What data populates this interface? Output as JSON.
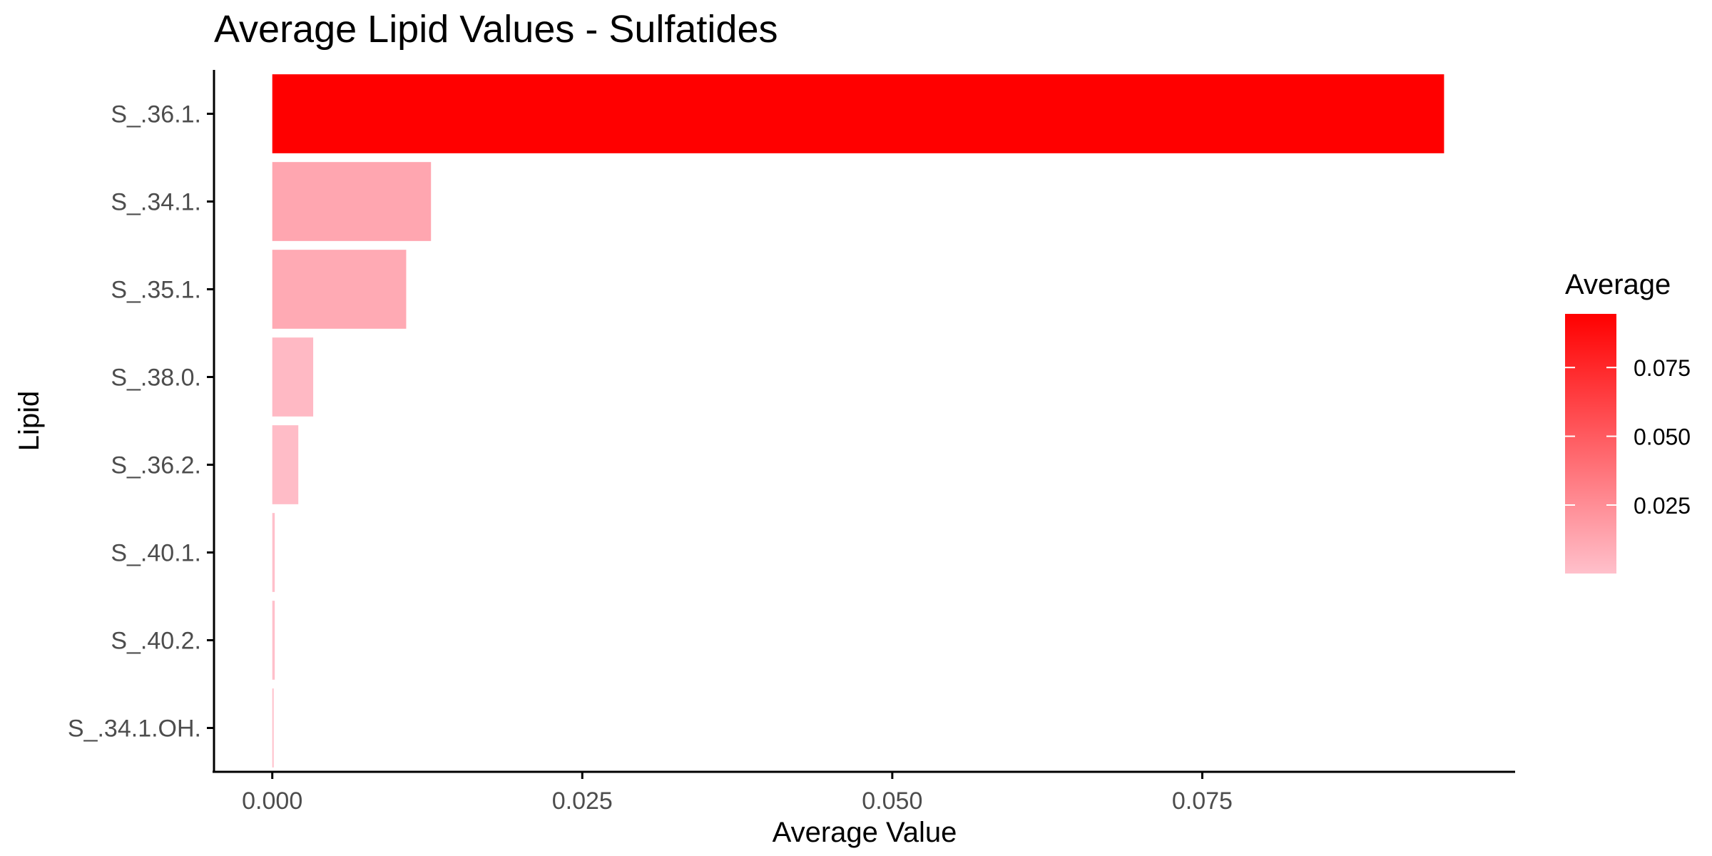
{
  "chart_data": {
    "type": "bar",
    "orientation": "horizontal",
    "title": "Average Lipid Values - Sulfatides",
    "xlabel": "Average Value",
    "ylabel": "Lipid",
    "categories": [
      "S_.36.1.",
      "S_.34.1.",
      "S_.35.1.",
      "S_.38.0.",
      "S_.36.2.",
      "S_.40.1.",
      "S_.40.2.",
      "S_.34.1.OH."
    ],
    "values": [
      0.0945,
      0.0128,
      0.0108,
      0.0033,
      0.0021,
      0.0002,
      0.0002,
      0.0001
    ],
    "xlim": [
      -0.0047,
      0.1
    ],
    "xticks": [
      0,
      0.025,
      0.05,
      0.075
    ],
    "xtick_labels": [
      "0.000",
      "0.025",
      "0.050",
      "0.075"
    ],
    "grid": false,
    "legend": {
      "title": "Average",
      "type": "colorbar",
      "position": "right",
      "range": [
        0.0001,
        0.0945
      ],
      "ticks": [
        0.025,
        0.05,
        0.075
      ],
      "tick_labels": [
        "0.025",
        "0.050",
        "0.075"
      ],
      "low_color": "#FFC0CB",
      "high_color": "#FF0000"
    }
  }
}
